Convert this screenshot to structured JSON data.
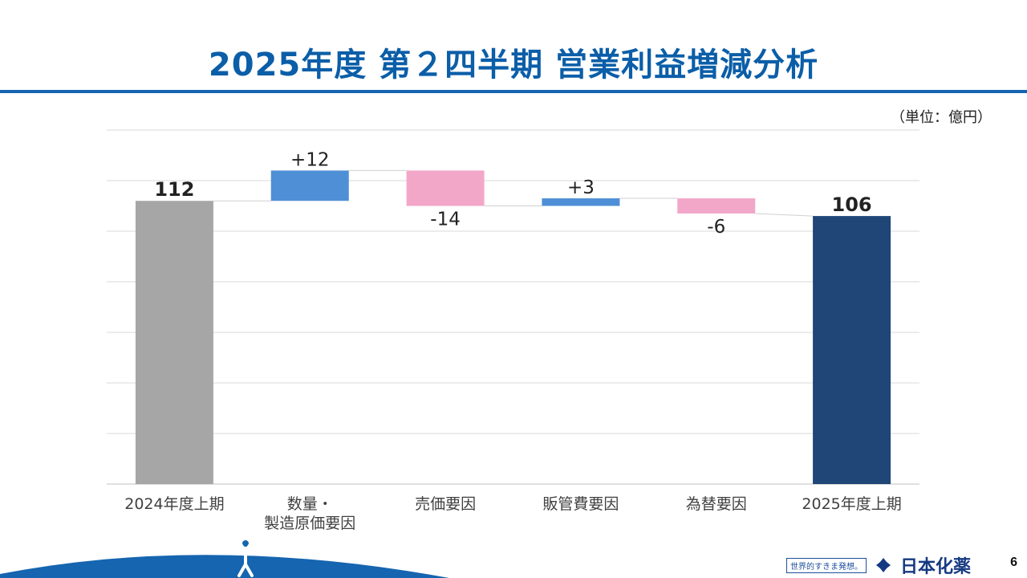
{
  "title": "2025年度 第２四半期 営業利益増減分析",
  "unit_label": "（単位：億円）",
  "page_number": "6",
  "brand": {
    "slogan": "世界的すきま発想。",
    "company_name": "日本化薬",
    "logo_icon": "nippon-kayaku-logo-icon"
  },
  "colors": {
    "title": "#0b5ea8",
    "start_bar": "#a6a6a6",
    "increase_bar": "#4f8fd6",
    "decrease_bar": "#f2a7c9",
    "end_bar": "#1f4677",
    "footer_arc": "#1565b0"
  },
  "chart_data": {
    "type": "bar",
    "subtype": "waterfall",
    "categories": [
      "2024年度上期",
      "数量・\n製造原価要因",
      "売価要因",
      "販管費要因",
      "為替要因",
      "2025年度上期"
    ],
    "values": [
      112,
      12,
      -14,
      3,
      -6,
      106
    ],
    "kinds": [
      "total",
      "delta",
      "delta",
      "delta",
      "delta",
      "total"
    ],
    "data_labels": [
      "112",
      "+12",
      "-14",
      "+3",
      "-6",
      "106"
    ],
    "ylim": [
      0,
      140
    ],
    "grid": true,
    "title": "",
    "xlabel": "",
    "ylabel": ""
  }
}
